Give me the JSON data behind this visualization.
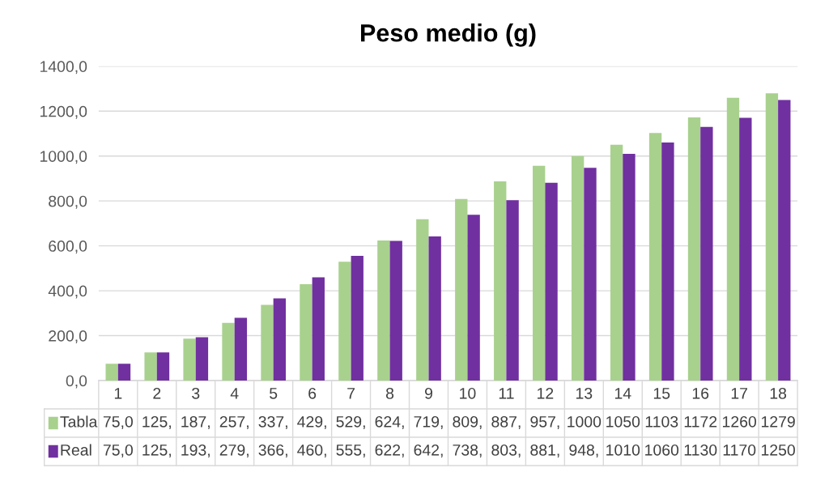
{
  "chart_data": {
    "type": "bar",
    "title": "Peso medio (g)",
    "categories": [
      "1",
      "2",
      "3",
      "4",
      "5",
      "6",
      "7",
      "8",
      "9",
      "10",
      "11",
      "12",
      "13",
      "14",
      "15",
      "16",
      "17",
      "18"
    ],
    "series": [
      {
        "name": "Tabla",
        "color": "#a9d18e",
        "values": [
          75,
          125,
          187,
          257,
          337,
          429,
          529,
          624,
          719,
          809,
          887,
          957,
          1000,
          1050,
          1103,
          1172,
          1260,
          1279
        ],
        "value_labels": [
          "75,0",
          "125,",
          "187,",
          "257,",
          "337,",
          "429,",
          "529,",
          "624,",
          "719,",
          "809,",
          "887,",
          "957,",
          "1000",
          "1050",
          "1103",
          "1172",
          "1260",
          "1279"
        ]
      },
      {
        "name": "Real",
        "color": "#7030a0",
        "values": [
          75,
          125,
          193,
          279,
          366,
          460,
          555,
          622,
          642,
          738,
          803,
          881,
          948,
          1010,
          1060,
          1130,
          1170,
          1250
        ],
        "value_labels": [
          "75,0",
          "125,",
          "193,",
          "279,",
          "366,",
          "460,",
          "555,",
          "622,",
          "642,",
          "738,",
          "803,",
          "881,",
          "948,",
          "1010",
          "1060",
          "1130",
          "1170",
          "1250"
        ]
      }
    ],
    "ylim": [
      0,
      1400
    ],
    "yticks": [
      {
        "value": 0,
        "label": "0,0"
      },
      {
        "value": 200,
        "label": "200,0"
      },
      {
        "value": 400,
        "label": "400,0"
      },
      {
        "value": 600,
        "label": "600,0"
      },
      {
        "value": 800,
        "label": "800,0"
      },
      {
        "value": 1000,
        "label": "1000,0"
      },
      {
        "value": 1200,
        "label": "1200,0"
      },
      {
        "value": 1400,
        "label": "1400,0"
      }
    ],
    "grid": "y",
    "legend": "bottom"
  }
}
